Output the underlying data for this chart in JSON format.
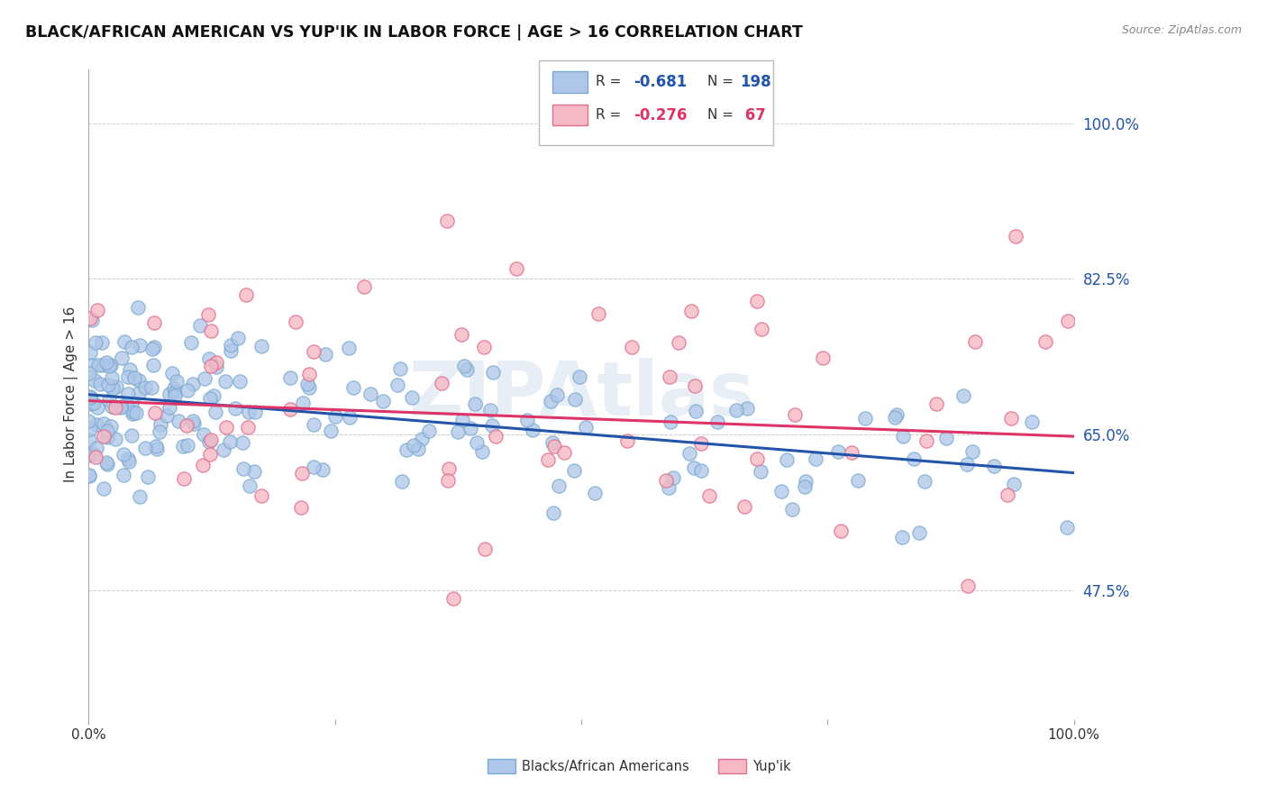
{
  "title": "BLACK/AFRICAN AMERICAN VS YUP'IK IN LABOR FORCE | AGE > 16 CORRELATION CHART",
  "source": "Source: ZipAtlas.com",
  "ylabel": "In Labor Force | Age > 16",
  "y_tick_labels": [
    "47.5%",
    "65.0%",
    "82.5%",
    "100.0%"
  ],
  "y_tick_positions": [
    0.475,
    0.65,
    0.825,
    1.0
  ],
  "x_lim": [
    0.0,
    1.0
  ],
  "y_lim": [
    0.33,
    1.06
  ],
  "blue_color": "#AEC6E8",
  "blue_edge_color": "#7AAAD0",
  "blue_line_color": "#2255AA",
  "pink_color": "#F5B8C4",
  "pink_edge_color": "#E07090",
  "pink_line_color": "#DD3366",
  "watermark": "ZIPAtlas",
  "watermark_color": "#E8EEF5",
  "R_blue": -0.681,
  "N_blue": 198,
  "R_pink": -0.276,
  "N_pink": 67,
  "blue_intercept": 0.695,
  "blue_slope": -0.088,
  "pink_intercept": 0.688,
  "pink_slope": -0.04,
  "legend_text_color": "#333333",
  "legend_value_color_blue": "#2255AA",
  "legend_value_color_pink": "#DD3366",
  "tick_label_color": "#2255AA",
  "grid_color": "#CCCCCC",
  "title_color": "#111111",
  "source_color": "#888888"
}
